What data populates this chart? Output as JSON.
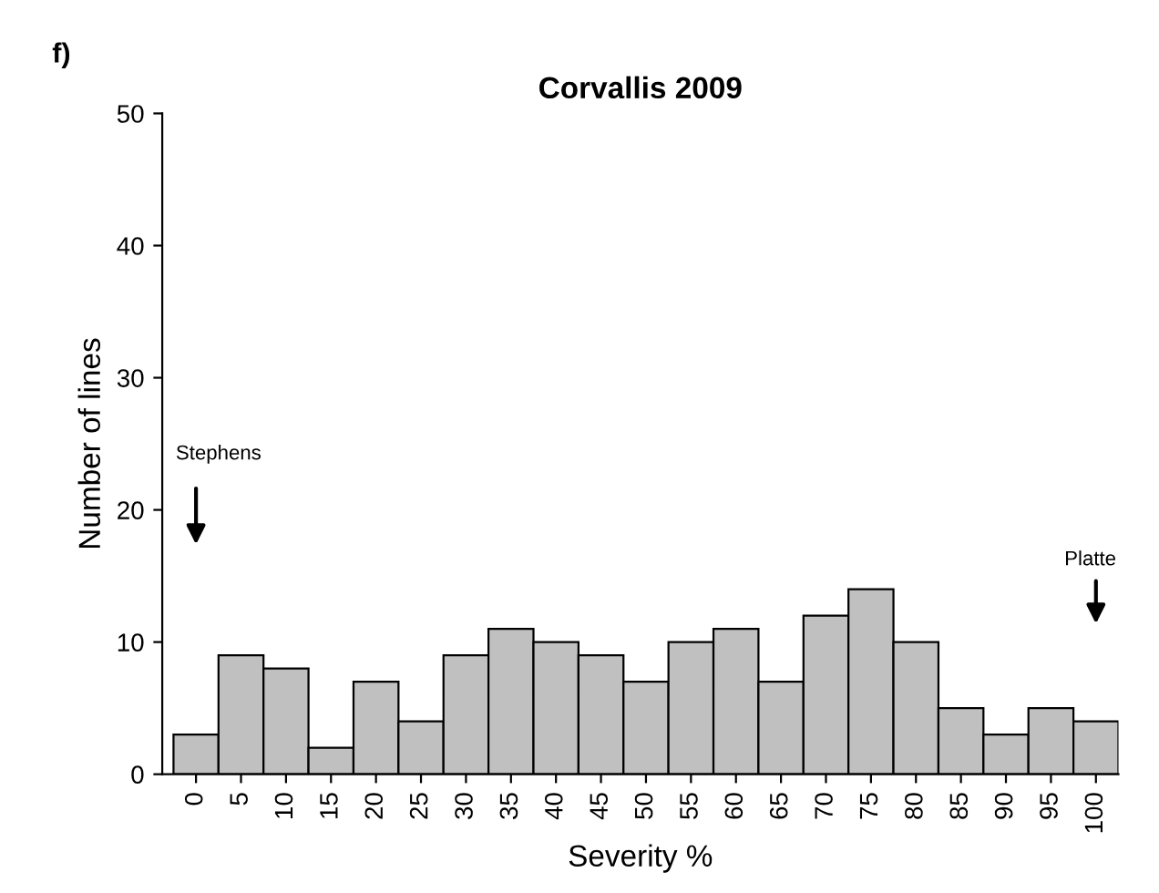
{
  "chart_data": {
    "type": "bar",
    "title": "Corvallis 2009",
    "xlabel": "Severity %",
    "ylabel": "Number of lines",
    "categories": [
      "0",
      "5",
      "10",
      "15",
      "20",
      "25",
      "30",
      "35",
      "40",
      "45",
      "50",
      "55",
      "60",
      "65",
      "70",
      "75",
      "80",
      "85",
      "90",
      "95",
      "100"
    ],
    "values": [
      3,
      9,
      8,
      2,
      7,
      4,
      9,
      11,
      10,
      9,
      7,
      10,
      11,
      7,
      12,
      14,
      10,
      5,
      3,
      5,
      4
    ],
    "color": "#c0c0c0",
    "ylim": [
      0,
      50
    ],
    "yticks": [
      0,
      10,
      20,
      30,
      40,
      50
    ],
    "grid": false,
    "legend": false,
    "annotations": [
      "f)",
      "Stephens",
      "Platte"
    ]
  }
}
